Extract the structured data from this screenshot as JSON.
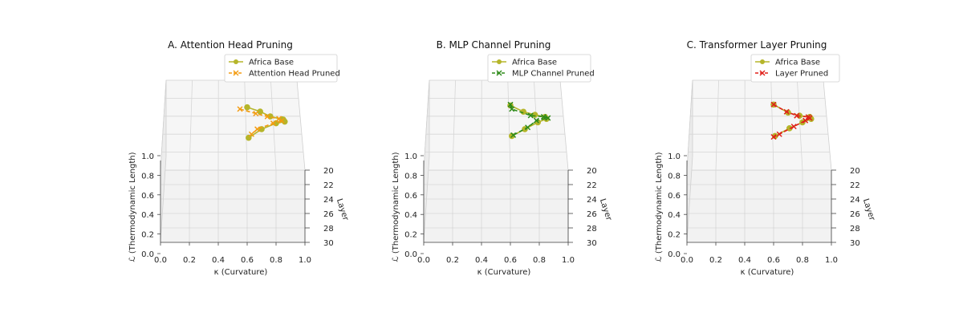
{
  "figure": {
    "axis_labels": {
      "x": "κ (Curvature)",
      "y": "Layer",
      "z": "ℒ (Thermodynamic Length)"
    }
  },
  "chart_data": [
    {
      "type": "line3d",
      "title": "A. Attention Head Pruning",
      "xlabel": "κ (Curvature)",
      "ylabel": "Layer",
      "zlabel": "ℒ (Thermodynamic Length)",
      "xlim": [
        0.0,
        1.0
      ],
      "ylim": [
        20,
        30
      ],
      "zlim": [
        0.0,
        1.0
      ],
      "x_ticks": [
        "0.0",
        "0.2",
        "0.4",
        "0.6",
        "0.8",
        "1.0"
      ],
      "y_ticks": [
        "20",
        "22",
        "24",
        "26",
        "28",
        "30"
      ],
      "z_ticks": [
        "0.0",
        "0.2",
        "0.4",
        "0.6",
        "0.8",
        "1.0"
      ],
      "legend_position": "top-right",
      "series": [
        {
          "name": "Africa Base",
          "color": "#b5b52a",
          "marker": "o",
          "style": "solid",
          "points": [
            {
              "x": 0.6,
              "y": 21.0,
              "z": 0.78
            },
            {
              "x": 0.69,
              "y": 21.1,
              "z": 0.74
            },
            {
              "x": 0.76,
              "y": 20.9,
              "z": 0.67
            },
            {
              "x": 0.84,
              "y": 20.8,
              "z": 0.63
            },
            {
              "x": 0.85,
              "y": 20.6,
              "z": 0.61
            },
            {
              "x": 0.86,
              "y": 20.5,
              "z": 0.58
            },
            {
              "x": 0.8,
              "y": 20.6,
              "z": 0.57
            },
            {
              "x": 0.7,
              "y": 20.8,
              "z": 0.52
            },
            {
              "x": 0.61,
              "y": 21.0,
              "z": 0.44
            }
          ]
        },
        {
          "name": "Attention Head Pruned",
          "color": "#f39c12",
          "marker": "x",
          "style": "dashed",
          "points": [
            {
              "x": 0.55,
              "y": 21.0,
              "z": 0.76
            },
            {
              "x": 0.66,
              "y": 21.0,
              "z": 0.71
            },
            {
              "x": 0.74,
              "y": 20.8,
              "z": 0.66
            },
            {
              "x": 0.82,
              "y": 20.6,
              "z": 0.62
            },
            {
              "x": 0.84,
              "y": 20.5,
              "z": 0.59
            },
            {
              "x": 0.78,
              "y": 20.6,
              "z": 0.57
            },
            {
              "x": 0.67,
              "y": 20.8,
              "z": 0.52
            },
            {
              "x": 0.63,
              "y": 21.0,
              "z": 0.48
            }
          ]
        }
      ]
    },
    {
      "type": "line3d",
      "title": "B. MLP Channel Pruning",
      "xlabel": "κ (Curvature)",
      "ylabel": "Layer",
      "zlabel": "ℒ (Thermodynamic Length)",
      "xlim": [
        0.0,
        1.0
      ],
      "ylim": [
        20,
        30
      ],
      "zlim": [
        0.0,
        1.0
      ],
      "x_ticks": [
        "0.0",
        "0.2",
        "0.4",
        "0.6",
        "0.8",
        "1.0"
      ],
      "y_ticks": [
        "20",
        "22",
        "24",
        "26",
        "28",
        "30"
      ],
      "z_ticks": [
        "0.0",
        "0.2",
        "0.4",
        "0.6",
        "0.8",
        "1.0"
      ],
      "legend_position": "top-right",
      "series": [
        {
          "name": "Africa Base",
          "color": "#b5b52a",
          "marker": "o",
          "style": "solid",
          "points": [
            {
              "x": 0.6,
              "y": 21.0,
              "z": 0.8
            },
            {
              "x": 0.69,
              "y": 21.0,
              "z": 0.73
            },
            {
              "x": 0.77,
              "y": 20.8,
              "z": 0.68
            },
            {
              "x": 0.84,
              "y": 20.6,
              "z": 0.64
            },
            {
              "x": 0.85,
              "y": 20.5,
              "z": 0.61
            },
            {
              "x": 0.79,
              "y": 20.6,
              "z": 0.58
            },
            {
              "x": 0.7,
              "y": 20.8,
              "z": 0.52
            },
            {
              "x": 0.61,
              "y": 21.0,
              "z": 0.46
            }
          ]
        },
        {
          "name": "MLP Channel Pruned",
          "color": "#2e8b1a",
          "marker": "x",
          "style": "dashed",
          "points": [
            {
              "x": 0.6,
              "y": 21.0,
              "z": 0.81
            },
            {
              "x": 0.61,
              "y": 21.0,
              "z": 0.76
            },
            {
              "x": 0.74,
              "y": 20.9,
              "z": 0.68
            },
            {
              "x": 0.83,
              "y": 20.7,
              "z": 0.65
            },
            {
              "x": 0.86,
              "y": 20.5,
              "z": 0.62
            },
            {
              "x": 0.78,
              "y": 20.6,
              "z": 0.6
            },
            {
              "x": 0.72,
              "y": 20.8,
              "z": 0.54
            },
            {
              "x": 0.62,
              "y": 21.0,
              "z": 0.47
            }
          ]
        }
      ]
    },
    {
      "type": "line3d",
      "title": "C. Transformer Layer Pruning",
      "xlabel": "κ (Curvature)",
      "ylabel": "Layer",
      "zlabel": "ℒ (Thermodynamic Length)",
      "xlim": [
        0.0,
        1.0
      ],
      "ylim": [
        20,
        30
      ],
      "zlim": [
        0.0,
        1.0
      ],
      "x_ticks": [
        "0.0",
        "0.2",
        "0.4",
        "0.6",
        "0.8",
        "1.0"
      ],
      "y_ticks": [
        "20",
        "22",
        "24",
        "26",
        "28",
        "30"
      ],
      "z_ticks": [
        "0.0",
        "0.2",
        "0.4",
        "0.6",
        "0.8",
        "1.0"
      ],
      "legend_position": "top-right",
      "series": [
        {
          "name": "Africa Base",
          "color": "#b5b52a",
          "marker": "o",
          "style": "solid",
          "points": [
            {
              "x": 0.6,
              "y": 21.0,
              "z": 0.81
            },
            {
              "x": 0.7,
              "y": 21.0,
              "z": 0.72
            },
            {
              "x": 0.78,
              "y": 20.8,
              "z": 0.67
            },
            {
              "x": 0.85,
              "y": 20.6,
              "z": 0.64
            },
            {
              "x": 0.86,
              "y": 20.5,
              "z": 0.61
            },
            {
              "x": 0.8,
              "y": 20.6,
              "z": 0.58
            },
            {
              "x": 0.71,
              "y": 20.8,
              "z": 0.53
            },
            {
              "x": 0.61,
              "y": 21.0,
              "z": 0.46
            }
          ]
        },
        {
          "name": "Layer Pruned",
          "color": "#e0201a",
          "marker": "x",
          "style": "dashed",
          "points": [
            {
              "x": 0.6,
              "y": 21.0,
              "z": 0.81
            },
            {
              "x": 0.69,
              "y": 21.0,
              "z": 0.73
            },
            {
              "x": 0.76,
              "y": 20.8,
              "z": 0.67
            },
            {
              "x": 0.84,
              "y": 20.6,
              "z": 0.64
            },
            {
              "x": 0.85,
              "y": 20.5,
              "z": 0.62
            },
            {
              "x": 0.82,
              "y": 20.6,
              "z": 0.6
            },
            {
              "x": 0.74,
              "y": 20.8,
              "z": 0.55
            },
            {
              "x": 0.64,
              "y": 21.0,
              "z": 0.48
            },
            {
              "x": 0.6,
              "y": 21.0,
              "z": 0.45
            }
          ]
        }
      ]
    }
  ]
}
